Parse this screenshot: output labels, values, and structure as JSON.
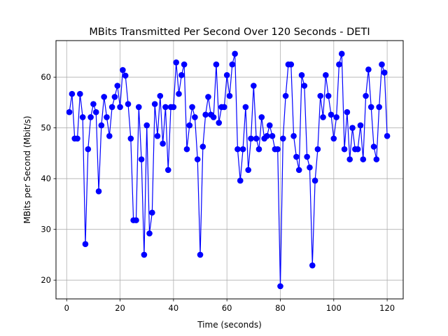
{
  "chart_data": {
    "type": "line",
    "title": "MBits Transmitted Per Second Over 120 Seconds - DETI",
    "xlabel": "Time (seconds)",
    "ylabel": "MBits per Second (Mbit/s)",
    "xlim": [
      -4,
      126
    ],
    "ylim": [
      16.3,
      67.2
    ],
    "xticks": [
      0,
      20,
      40,
      60,
      80,
      100,
      120
    ],
    "yticks": [
      20,
      30,
      40,
      50,
      60
    ],
    "grid": true,
    "colors": {
      "line": "#0000ff",
      "marker": "#0000ff",
      "grid": "#b0b0b0"
    },
    "series": [
      {
        "marker": "circle",
        "x": [
          1,
          2,
          3,
          4,
          5,
          6,
          7,
          8,
          9,
          10,
          11,
          12,
          13,
          14,
          15,
          16,
          17,
          18,
          19,
          20,
          21,
          22,
          23,
          24,
          25,
          26,
          27,
          28,
          29,
          30,
          31,
          32,
          33,
          34,
          35,
          36,
          37,
          38,
          39,
          40,
          41,
          42,
          43,
          44,
          45,
          46,
          47,
          48,
          49,
          50,
          51,
          52,
          53,
          54,
          55,
          56,
          57,
          58,
          59,
          60,
          61,
          62,
          63,
          64,
          65,
          66,
          67,
          68,
          69,
          70,
          71,
          72,
          73,
          74,
          75,
          76,
          77,
          78,
          79,
          80,
          81,
          82,
          83,
          84,
          85,
          86,
          87,
          88,
          89,
          90,
          91,
          92,
          93,
          94,
          95,
          96,
          97,
          98,
          99,
          100,
          101,
          102,
          103,
          104,
          105,
          106,
          107,
          108,
          109,
          110,
          111,
          112,
          113,
          114,
          115,
          116,
          117,
          118,
          119,
          120
        ],
        "y": [
          53.1,
          56.7,
          47.9,
          47.9,
          56.7,
          52.1,
          27.1,
          45.8,
          52.1,
          54.7,
          53.1,
          37.5,
          50.5,
          56.1,
          52.1,
          48.4,
          54.1,
          56.1,
          58.3,
          54.1,
          61.4,
          60.3,
          54.7,
          47.9,
          31.8,
          31.8,
          54.1,
          43.8,
          25.0,
          50.5,
          29.2,
          33.3,
          54.7,
          48.4,
          56.3,
          46.9,
          54.1,
          41.7,
          54.1,
          54.1,
          62.9,
          56.7,
          60.4,
          62.5,
          45.8,
          50.5,
          54.1,
          52.1,
          43.8,
          25.0,
          46.3,
          52.6,
          56.1,
          52.6,
          52.1,
          62.5,
          51.0,
          54.1,
          54.1,
          60.4,
          56.3,
          62.5,
          64.6,
          45.8,
          39.6,
          45.8,
          54.1,
          41.7,
          47.9,
          58.3,
          47.9,
          45.8,
          52.1,
          47.9,
          48.4,
          50.5,
          48.4,
          45.8,
          45.8,
          18.8,
          47.9,
          56.3,
          62.5,
          62.5,
          48.4,
          44.3,
          41.7,
          60.4,
          58.3,
          44.3,
          42.2,
          22.9,
          39.6,
          45.8,
          56.3,
          52.1,
          60.4,
          56.3,
          52.6,
          47.9,
          52.1,
          62.5,
          64.6,
          45.8,
          53.1,
          43.8,
          50.0,
          45.8,
          45.8,
          50.5,
          43.8,
          56.3,
          61.5,
          54.1,
          46.3,
          43.8,
          54.1,
          62.5,
          60.9,
          48.4
        ]
      }
    ]
  }
}
